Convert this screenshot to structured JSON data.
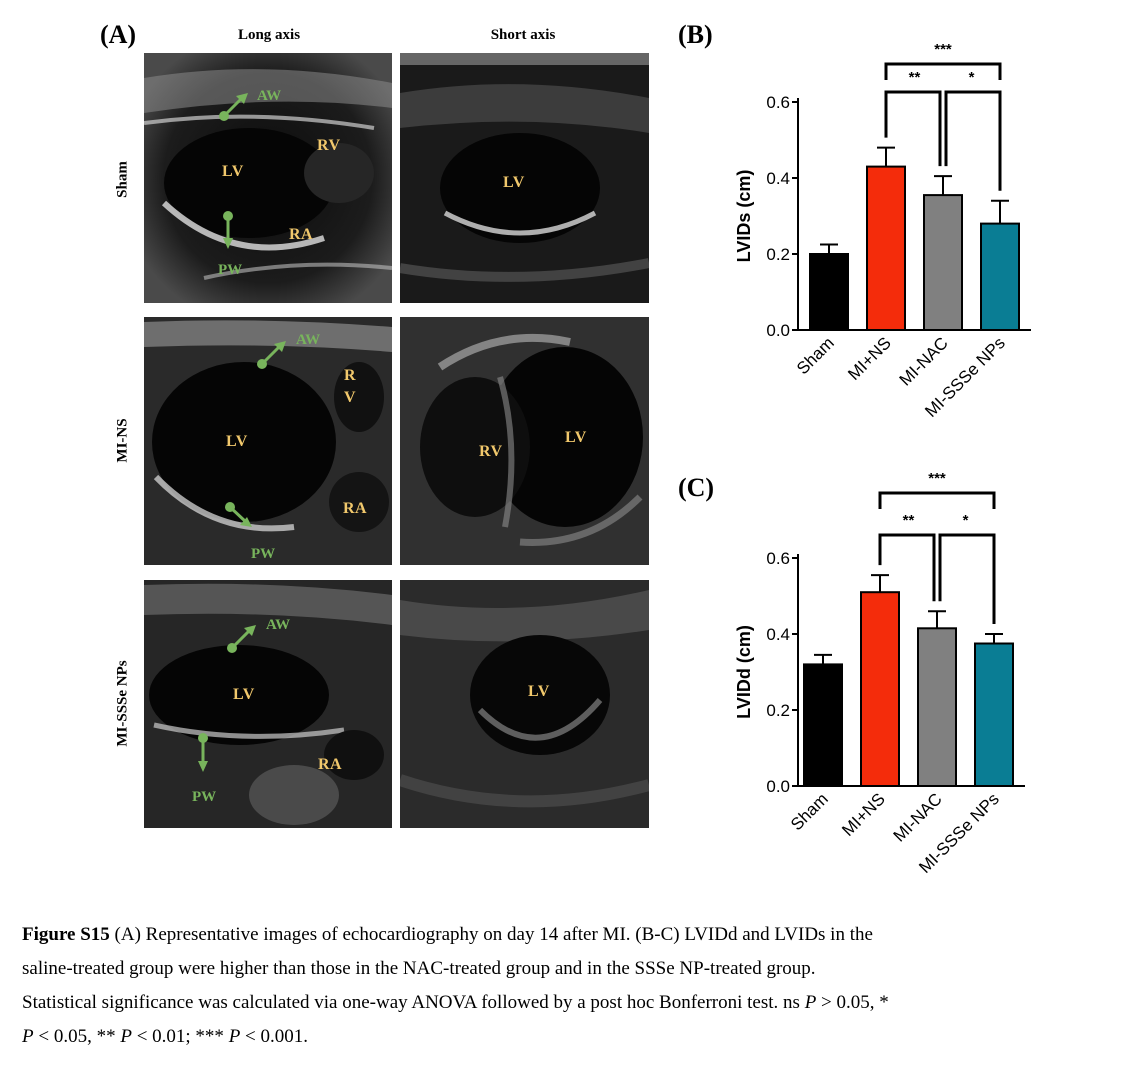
{
  "panels": {
    "a_letter": "(A)",
    "b_letter": "(B)",
    "c_letter": "(C)",
    "col_long": "Long axis",
    "col_short": "Short axis",
    "rows": [
      "Sham",
      "MI-NS",
      "MI-SSSe NPs"
    ]
  },
  "echo_labels": {
    "sham_long": {
      "aw": "AW",
      "lv": "LV",
      "rv": "RV",
      "ra": "RA",
      "pw": "PW"
    },
    "sham_short": {
      "lv": "LV"
    },
    "mins_long": {
      "aw": "AW",
      "r": "R",
      "v": "V",
      "lv": "LV",
      "ra": "RA",
      "pw": "PW"
    },
    "mins_short": {
      "rv": "RV",
      "lv": "LV"
    },
    "sssE_long": {
      "aw": "AW",
      "lv": "LV",
      "ra": "RA",
      "pw": "PW"
    },
    "sssE_short": {
      "lv": "LV"
    }
  },
  "colors": {
    "sham": "#000000",
    "mi_ns": "#f42c0b",
    "mi_nac": "#808080",
    "mi_ssse": "#0a7d94",
    "echo_label": "#f1c86c",
    "arrow_green": "#78b45c"
  },
  "chart_data": [
    {
      "type": "bar",
      "panel": "B",
      "ylabel": "LVIDs (cm)",
      "xlabel": "",
      "categories": [
        "Sham",
        "MI+NS",
        "MI-NAC",
        "MI-SSSe NPs"
      ],
      "values": [
        0.2,
        0.43,
        0.355,
        0.28
      ],
      "errors": [
        0.025,
        0.05,
        0.05,
        0.06
      ],
      "ylim": [
        0,
        0.6
      ],
      "yticks": [
        "0.0",
        "0.2",
        "0.4",
        "0.6"
      ],
      "significance": [
        {
          "from": "MI+NS",
          "to": "MI-NAC",
          "label": "**"
        },
        {
          "from": "MI-NAC",
          "to": "MI-SSSe NPs",
          "label": "*"
        },
        {
          "from": "MI+NS",
          "to": "MI-SSSe NPs",
          "label": "***"
        }
      ]
    },
    {
      "type": "bar",
      "panel": "C",
      "ylabel": "LVIDd (cm)",
      "xlabel": "",
      "categories": [
        "Sham",
        "MI+NS",
        "MI-NAC",
        "MI-SSSe NPs"
      ],
      "values": [
        0.32,
        0.51,
        0.415,
        0.375
      ],
      "errors": [
        0.025,
        0.045,
        0.045,
        0.025
      ],
      "ylim": [
        0,
        0.6
      ],
      "yticks": [
        "0.0",
        "0.2",
        "0.4",
        "0.6"
      ],
      "significance": [
        {
          "from": "MI+NS",
          "to": "MI-NAC",
          "label": "**"
        },
        {
          "from": "MI-NAC",
          "to": "MI-SSSe NPs",
          "label": "*"
        },
        {
          "from": "MI+NS",
          "to": "MI-SSSe NPs",
          "label": "***"
        }
      ]
    }
  ],
  "caption": {
    "fig": "Figure S15",
    "line1": " (A) Representative images of echocardiography on day 14 after MI. (B-C) LVIDd and LVIDs in the",
    "line2": "saline-treated group were higher than those in the NAC-treated group and in the SSSe NP-treated group.",
    "line3": "Statistical significance was calculated via one-way ANOVA followed by a post hoc Bonferroni test. ns ",
    "p1": "P",
    "line3b": " > 0.05, *",
    "p2": "P",
    "line4a": " < 0.05, ** ",
    "p3": "P",
    "line4b": " < 0.01; *** ",
    "p4": "P",
    "line4c": " < 0.001."
  }
}
